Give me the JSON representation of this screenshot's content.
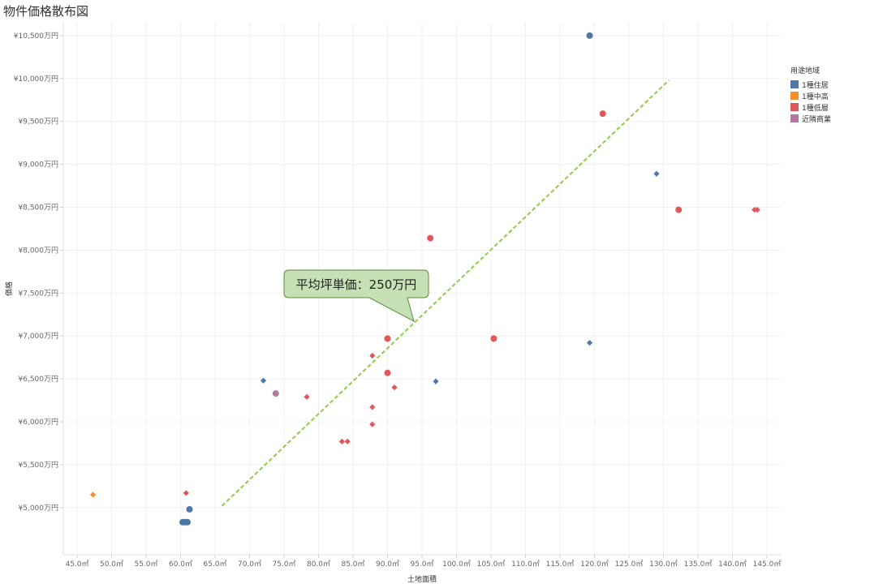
{
  "page": {
    "title": "物件価格散布図"
  },
  "chart_data": {
    "type": "scatter",
    "title": "物件価格散布図",
    "xlabel": "土地面積",
    "ylabel": "価格",
    "xlim": [
      43,
      147
    ],
    "ylim": [
      4450,
      10650
    ],
    "x_ticks": [
      45,
      50,
      55,
      60,
      65,
      70,
      75,
      80,
      85,
      90,
      95,
      100,
      105,
      110,
      115,
      120,
      125,
      130,
      135,
      140,
      145
    ],
    "y_ticks": [
      5000,
      5500,
      6000,
      6500,
      7000,
      7500,
      8000,
      8500,
      9000,
      9500,
      10000,
      10500
    ],
    "x_tick_labels": [
      "45.0㎡",
      "50.0㎡",
      "55.0㎡",
      "60.0㎡",
      "65.0㎡",
      "70.0㎡",
      "75.0㎡",
      "80.0㎡",
      "85.0㎡",
      "90.0㎡",
      "95.0㎡",
      "100.0㎡",
      "105.0㎡",
      "110.0㎡",
      "115.0㎡",
      "120.0㎡",
      "125.0㎡",
      "130.0㎡",
      "135.0㎡",
      "140.0㎡",
      "145.0㎡"
    ],
    "y_tick_labels": [
      "¥5,000万円",
      "¥5,500万円",
      "¥6,000万円",
      "¥6,500万円",
      "¥7,000万円",
      "¥7,500万円",
      "¥8,000万円",
      "¥8,500万円",
      "¥9,000万円",
      "¥9,500万円",
      "¥10,000万円",
      "¥10,500万円"
    ],
    "grid": true,
    "legend": {
      "title": "用途地域",
      "placement": "right"
    },
    "series": [
      {
        "name": "1種住居",
        "color": "#4e79a7",
        "points": [
          {
            "x": 119.3,
            "y": 10500,
            "shape": "circle"
          },
          {
            "x": 129.0,
            "y": 8890,
            "shape": "diamond"
          },
          {
            "x": 119.3,
            "y": 6920,
            "shape": "diamond"
          },
          {
            "x": 72.0,
            "y": 6480,
            "shape": "diamond"
          },
          {
            "x": 97.0,
            "y": 6470,
            "shape": "diamond"
          },
          {
            "x": 61.3,
            "y": 4980,
            "shape": "circle"
          },
          {
            "x": 60.3,
            "y": 4830,
            "shape": "circle"
          },
          {
            "x": 60.6,
            "y": 4830,
            "shape": "circle"
          },
          {
            "x": 61.0,
            "y": 4830,
            "shape": "circle"
          }
        ]
      },
      {
        "name": "1種中高",
        "color": "#f28e2b",
        "points": [
          {
            "x": 47.3,
            "y": 5150,
            "shape": "diamond"
          }
        ]
      },
      {
        "name": "1種低層",
        "color": "#e15759",
        "points": [
          {
            "x": 121.2,
            "y": 9590,
            "shape": "circle"
          },
          {
            "x": 132.2,
            "y": 8470,
            "shape": "circle"
          },
          {
            "x": 143.2,
            "y": 8470,
            "shape": "diamond"
          },
          {
            "x": 143.6,
            "y": 8470,
            "shape": "diamond"
          },
          {
            "x": 96.2,
            "y": 8140,
            "shape": "circle"
          },
          {
            "x": 105.4,
            "y": 6970,
            "shape": "circle"
          },
          {
            "x": 90.0,
            "y": 6970,
            "shape": "circle"
          },
          {
            "x": 87.8,
            "y": 6770,
            "shape": "diamond"
          },
          {
            "x": 90.0,
            "y": 6570,
            "shape": "circle"
          },
          {
            "x": 91.0,
            "y": 6400,
            "shape": "diamond"
          },
          {
            "x": 78.3,
            "y": 6290,
            "shape": "diamond"
          },
          {
            "x": 87.8,
            "y": 6170,
            "shape": "diamond"
          },
          {
            "x": 87.8,
            "y": 5970,
            "shape": "diamond"
          },
          {
            "x": 83.4,
            "y": 5770,
            "shape": "diamond"
          },
          {
            "x": 84.2,
            "y": 5770,
            "shape": "diamond"
          },
          {
            "x": 60.8,
            "y": 5170,
            "shape": "diamond"
          }
        ]
      },
      {
        "name": "近隣商業",
        "color": "#b07aa1",
        "points": [
          {
            "x": 73.8,
            "y": 6330,
            "shape": "circle"
          }
        ]
      }
    ],
    "trend_line": {
      "color": "#8fcc4a",
      "x1": 66.0,
      "y1": 5020,
      "x2": 130.8,
      "y2": 9980
    },
    "annotation": {
      "text": "平均坪単価：250万円",
      "bg": "#c5e0b4",
      "border": "#5f8b3a"
    }
  }
}
